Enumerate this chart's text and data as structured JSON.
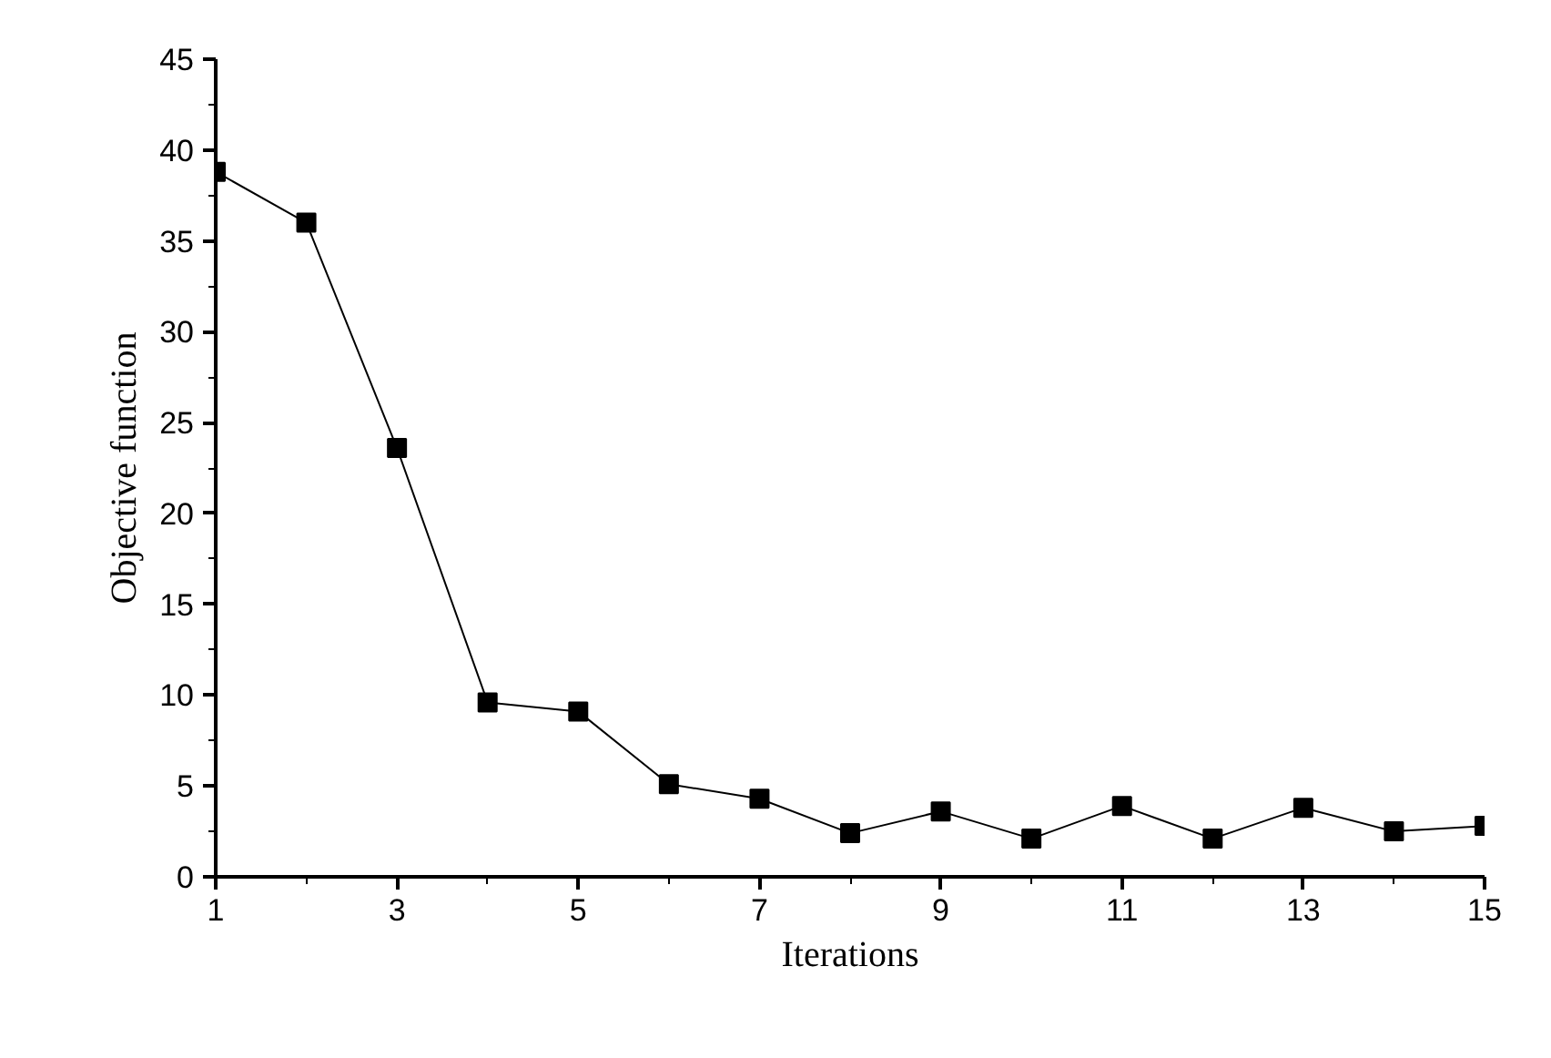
{
  "chart_data": {
    "type": "line",
    "xlabel": "Iterations",
    "ylabel": "Objective function",
    "x": [
      1,
      2,
      3,
      4,
      5,
      6,
      7,
      8,
      9,
      10,
      11,
      12,
      13,
      14,
      15
    ],
    "series": [
      {
        "color": "#000000",
        "values": [
          38.8,
          36,
          23.6,
          9.6,
          9.1,
          5.1,
          4.3,
          2.4,
          3.6,
          2.1,
          3.9,
          2.1,
          3.8,
          2.5,
          2.8
        ]
      }
    ],
    "xlim": [
      1,
      15
    ],
    "ylim": [
      0,
      45
    ],
    "xticks": [
      1,
      3,
      5,
      7,
      9,
      11,
      13,
      15
    ],
    "yticks": [
      0,
      5,
      10,
      15,
      20,
      25,
      30,
      35,
      40,
      45
    ],
    "grid": false,
    "marker": "square",
    "line_style": "solid"
  }
}
